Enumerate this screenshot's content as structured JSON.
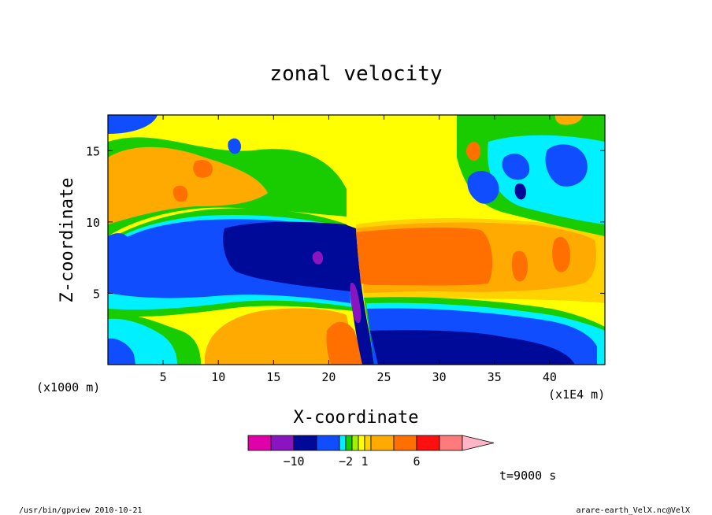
{
  "chart_data": {
    "type": "heatmap",
    "subtype": "filled contour",
    "title": "zonal velocity",
    "xlabel": "X-coordinate",
    "ylabel": "Z-coordinate",
    "x_units": "(x1E4 m)",
    "y_units": "(x1000 m)",
    "xlim": [
      0,
      45
    ],
    "ylim": [
      0,
      17.5
    ],
    "x_ticks": [
      "5",
      "10",
      "15",
      "20",
      "25",
      "30",
      "35",
      "40"
    ],
    "y_ticks": [
      "5",
      "10",
      "15"
    ],
    "colorbar": {
      "colors": [
        "#e000a8",
        "#8a14bf",
        "#000a99",
        "#0f4dff",
        "#00f0ff",
        "#19cc00",
        "#a6ef00",
        "#ffff00",
        "#ffd200",
        "#ffaa00",
        "#ff7000",
        "#ff1010",
        "#ff7a7a",
        "#ffb4c8"
      ],
      "labels": [
        {
          "text": "−10",
          "after_index": 1
        },
        {
          "text": "−2",
          "after_index": 4
        },
        {
          "text": "1",
          "after_index": 7
        },
        {
          "text": "6",
          "after_index": 10
        }
      ]
    },
    "regions": [
      {
        "name": "background",
        "color": "#ffff00"
      },
      {
        "name": "upper-left-orange-band",
        "color": "#ffaa00"
      },
      {
        "name": "lower-left-orange-band",
        "color": "#ffaa00"
      },
      {
        "name": "mid-level-blue-jet",
        "color": "#0f4dff"
      },
      {
        "name": "mid-level-core",
        "color": "#000a99"
      },
      {
        "name": "right-orange-jet",
        "color": "#ff7000"
      },
      {
        "name": "lower-right-blue-flow",
        "color": "#0f4dff"
      },
      {
        "name": "lower-right-core",
        "color": "#000a99"
      },
      {
        "name": "upper-right-blue-cells",
        "color": "#0f4dff"
      }
    ]
  },
  "time_label": "t=9000 s",
  "footer": {
    "left": "/usr/bin/gpview  2010-10-21",
    "right": "arare-earth_VelX.nc@VelX"
  }
}
